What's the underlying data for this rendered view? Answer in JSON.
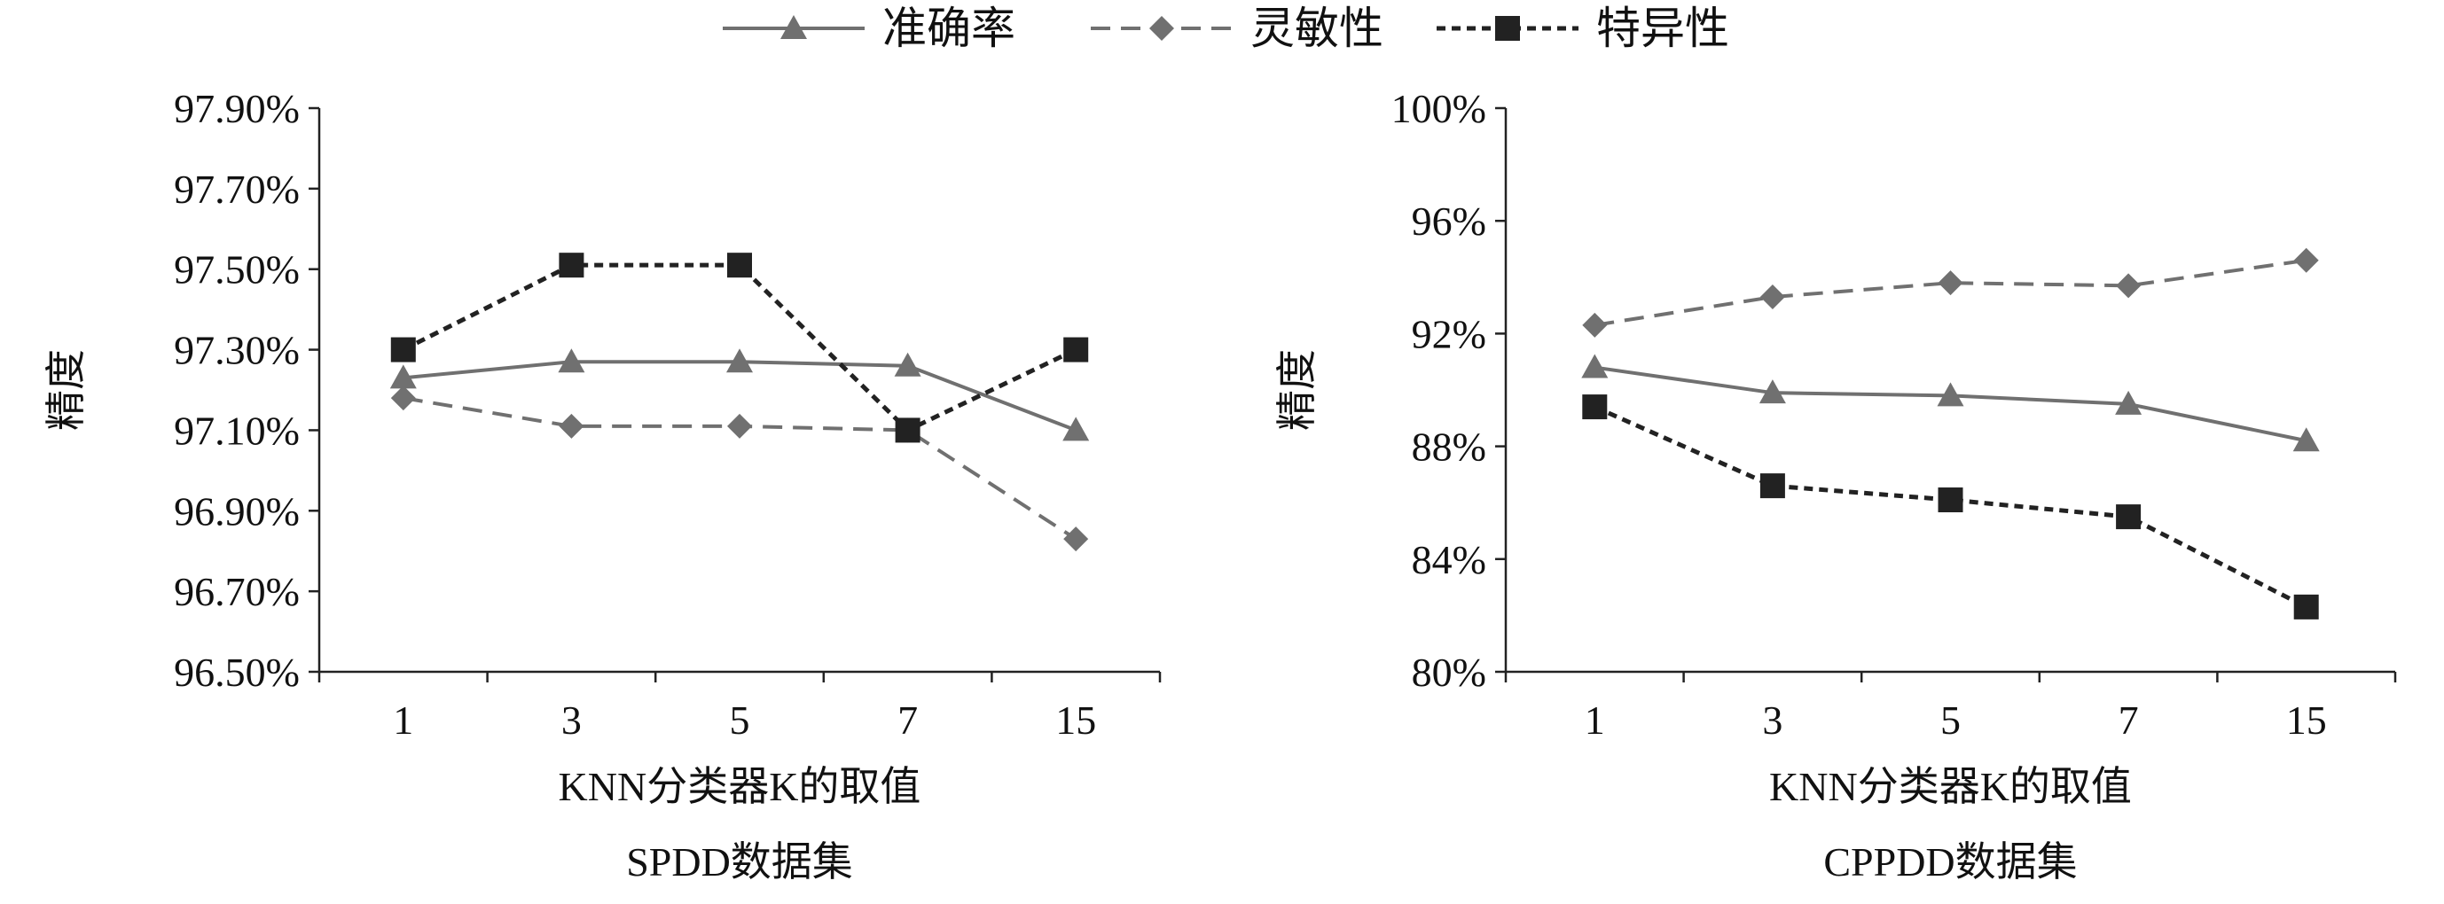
{
  "legend": [
    {
      "name": "准确率",
      "style": "solid",
      "marker": "triangle",
      "color": "#707070"
    },
    {
      "name": "灵敏性",
      "style": "dashed",
      "marker": "diamond",
      "color": "#707070"
    },
    {
      "name": "特异性",
      "style": "dotted",
      "marker": "square",
      "color": "#222222"
    }
  ],
  "chart_data": [
    {
      "type": "line",
      "title": "SPDD数据集",
      "xlabel": "KNN分类器K的取值",
      "ylabel": "精度",
      "categories": [
        "1",
        "3",
        "5",
        "7",
        "15"
      ],
      "ylim": [
        96.5,
        97.9
      ],
      "yticks": [
        "96.50%",
        "96.70%",
        "96.90%",
        "97.10%",
        "97.30%",
        "97.50%",
        "97.70%",
        "97.90%"
      ],
      "series": [
        {
          "name": "准确率",
          "values": [
            97.23,
            97.27,
            97.27,
            97.26,
            97.1
          ]
        },
        {
          "name": "灵敏性",
          "values": [
            97.18,
            97.11,
            97.11,
            97.1,
            96.83
          ]
        },
        {
          "name": "特异性",
          "values": [
            97.3,
            97.51,
            97.51,
            97.1,
            97.3
          ]
        }
      ]
    },
    {
      "type": "line",
      "title": "CPPDD数据集",
      "xlabel": "KNN分类器K的取值",
      "ylabel": "精度",
      "categories": [
        "1",
        "3",
        "5",
        "7",
        "15"
      ],
      "ylim": [
        80,
        100
      ],
      "yticks": [
        "80%",
        "84%",
        "88%",
        "92%",
        "96%",
        "100%"
      ],
      "series": [
        {
          "name": "准确率",
          "values": [
            90.8,
            89.9,
            89.8,
            89.5,
            88.2
          ]
        },
        {
          "name": "灵敏性",
          "values": [
            92.3,
            93.3,
            93.8,
            93.7,
            94.6
          ]
        },
        {
          "name": "特异性",
          "values": [
            89.4,
            86.6,
            86.1,
            85.5,
            82.3
          ]
        }
      ]
    }
  ]
}
